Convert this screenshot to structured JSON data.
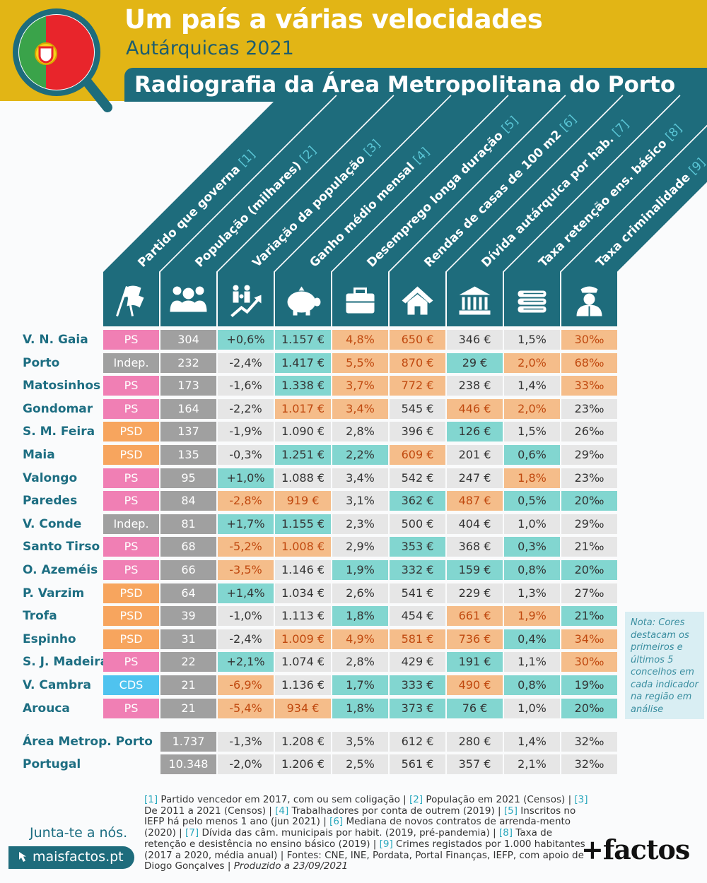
{
  "header": {
    "title": "Um país a várias velocidades",
    "subtitle": "Autárquicas 2021",
    "banner": "Radiografia da Área Metropolitana do Porto"
  },
  "colors": {
    "gold": "#e2b515",
    "teal_dark": "#1e6c7c",
    "PS": "#f07fb4",
    "PSD": "#f7a55e",
    "CDS": "#4fc3ef",
    "Indep": "#a0a0a0",
    "top5": "#82d6d0",
    "bottom5": "#f5bd8a",
    "neutral": "#e6e6e6"
  },
  "columns": [
    {
      "label": "Partido que governa",
      "ref": "[1]",
      "icon": "flags-icon"
    },
    {
      "label": "População (milhares)",
      "ref": "[2]",
      "icon": "people-icon"
    },
    {
      "label": "Variação da população",
      "ref": "[3]",
      "icon": "family-growth-icon"
    },
    {
      "label": "Ganho médio mensal",
      "ref": "[4]",
      "icon": "piggy-bank-icon"
    },
    {
      "label": "Desemprego longa duração",
      "ref": "[5]",
      "icon": "briefcase-icon"
    },
    {
      "label": "Rendas de casas de 100 m2",
      "ref": "[6]",
      "icon": "house-icon"
    },
    {
      "label": "Dívida autárquica por hab.",
      "ref": "[7]",
      "icon": "townhall-icon"
    },
    {
      "label": "Taxa retenção ens. básico",
      "ref": "[8]",
      "icon": "books-icon"
    },
    {
      "label": "Taxa criminalidade",
      "ref": "[9]",
      "icon": "police-icon"
    }
  ],
  "rows": [
    {
      "name": "V. N. Gaia",
      "cells": [
        [
          "PS",
          "PS"
        ],
        [
          "304",
          "g"
        ],
        [
          "+0,6%",
          "t"
        ],
        [
          "1.157 €",
          "t"
        ],
        [
          "4,8%",
          "o"
        ],
        [
          "650 €",
          "o"
        ],
        [
          "346 €",
          "n"
        ],
        [
          "1,5%",
          "n"
        ],
        [
          "30‰",
          "o"
        ]
      ]
    },
    {
      "name": "Porto",
      "cells": [
        [
          "Indep.",
          "I"
        ],
        [
          "232",
          "g"
        ],
        [
          "-2,4%",
          "n"
        ],
        [
          "1.417 €",
          "t"
        ],
        [
          "5,5%",
          "o"
        ],
        [
          "870 €",
          "o"
        ],
        [
          "29 €",
          "t"
        ],
        [
          "2,0%",
          "o"
        ],
        [
          "68‰",
          "o"
        ]
      ]
    },
    {
      "name": "Matosinhos",
      "cells": [
        [
          "PS",
          "PS"
        ],
        [
          "173",
          "g"
        ],
        [
          "-1,6%",
          "n"
        ],
        [
          "1.338 €",
          "t"
        ],
        [
          "3,7%",
          "o"
        ],
        [
          "772 €",
          "o"
        ],
        [
          "238 €",
          "n"
        ],
        [
          "1,4%",
          "n"
        ],
        [
          "33‰",
          "o"
        ]
      ]
    },
    {
      "name": "Gondomar",
      "cells": [
        [
          "PS",
          "PS"
        ],
        [
          "164",
          "g"
        ],
        [
          "-2,2%",
          "n"
        ],
        [
          "1.017 €",
          "o"
        ],
        [
          "3,4%",
          "o"
        ],
        [
          "545 €",
          "n"
        ],
        [
          "446 €",
          "o"
        ],
        [
          "2,0%",
          "o"
        ],
        [
          "23‰",
          "n"
        ]
      ]
    },
    {
      "name": "S. M. Feira",
      "cells": [
        [
          "PSD",
          "PSD"
        ],
        [
          "137",
          "g"
        ],
        [
          "-1,9%",
          "n"
        ],
        [
          "1.090 €",
          "n"
        ],
        [
          "2,8%",
          "n"
        ],
        [
          "396 €",
          "n"
        ],
        [
          "126 €",
          "t"
        ],
        [
          "1,5%",
          "n"
        ],
        [
          "26‰",
          "n"
        ]
      ]
    },
    {
      "name": "Maia",
      "cells": [
        [
          "PSD",
          "PSD"
        ],
        [
          "135",
          "g"
        ],
        [
          "-0,3%",
          "n"
        ],
        [
          "1.251 €",
          "t"
        ],
        [
          "2,2%",
          "t"
        ],
        [
          "609 €",
          "o"
        ],
        [
          "201 €",
          "n"
        ],
        [
          "0,6%",
          "t"
        ],
        [
          "29‰",
          "n"
        ]
      ]
    },
    {
      "name": "Valongo",
      "cells": [
        [
          "PS",
          "PS"
        ],
        [
          "95",
          "g"
        ],
        [
          "+1,0%",
          "t"
        ],
        [
          "1.088 €",
          "n"
        ],
        [
          "3,4%",
          "n"
        ],
        [
          "542 €",
          "n"
        ],
        [
          "247 €",
          "n"
        ],
        [
          "1,8%",
          "o"
        ],
        [
          "23‰",
          "n"
        ]
      ]
    },
    {
      "name": "Paredes",
      "cells": [
        [
          "PS",
          "PS"
        ],
        [
          "84",
          "g"
        ],
        [
          "-2,8%",
          "o"
        ],
        [
          "919 €",
          "o"
        ],
        [
          "3,1%",
          "n"
        ],
        [
          "362 €",
          "t"
        ],
        [
          "487 €",
          "o"
        ],
        [
          "0,5%",
          "t"
        ],
        [
          "20‰",
          "t"
        ]
      ]
    },
    {
      "name": "V. Conde",
      "cells": [
        [
          "Indep.",
          "I"
        ],
        [
          "81",
          "g"
        ],
        [
          "+1,7%",
          "t"
        ],
        [
          "1.155 €",
          "t"
        ],
        [
          "2,3%",
          "n"
        ],
        [
          "500 €",
          "n"
        ],
        [
          "404 €",
          "n"
        ],
        [
          "1,0%",
          "n"
        ],
        [
          "29‰",
          "n"
        ]
      ]
    },
    {
      "name": "Santo Tirso",
      "cells": [
        [
          "PS",
          "PS"
        ],
        [
          "68",
          "g"
        ],
        [
          "-5,2%",
          "o"
        ],
        [
          "1.008 €",
          "o"
        ],
        [
          "2,9%",
          "n"
        ],
        [
          "353 €",
          "t"
        ],
        [
          "368 €",
          "n"
        ],
        [
          "0,3%",
          "t"
        ],
        [
          "21‰",
          "n"
        ]
      ]
    },
    {
      "name": "O. Azeméis",
      "cells": [
        [
          "PS",
          "PS"
        ],
        [
          "66",
          "g"
        ],
        [
          "-3,5%",
          "o"
        ],
        [
          "1.146 €",
          "n"
        ],
        [
          "1,9%",
          "t"
        ],
        [
          "332 €",
          "t"
        ],
        [
          "159 €",
          "t"
        ],
        [
          "0,8%",
          "t"
        ],
        [
          "20‰",
          "t"
        ]
      ]
    },
    {
      "name": "P. Varzim",
      "cells": [
        [
          "PSD",
          "PSD"
        ],
        [
          "64",
          "g"
        ],
        [
          "+1,4%",
          "t"
        ],
        [
          "1.034 €",
          "n"
        ],
        [
          "2,6%",
          "n"
        ],
        [
          "541 €",
          "n"
        ],
        [
          "229 €",
          "n"
        ],
        [
          "1,3%",
          "n"
        ],
        [
          "27‰",
          "n"
        ]
      ]
    },
    {
      "name": "Trofa",
      "cells": [
        [
          "PSD",
          "PSD"
        ],
        [
          "39",
          "g"
        ],
        [
          "-1,0%",
          "n"
        ],
        [
          "1.113 €",
          "n"
        ],
        [
          "1,8%",
          "t"
        ],
        [
          "454 €",
          "n"
        ],
        [
          "661 €",
          "o"
        ],
        [
          "1,9%",
          "o"
        ],
        [
          "21‰",
          "t"
        ]
      ]
    },
    {
      "name": "Espinho",
      "cells": [
        [
          "PSD",
          "PSD"
        ],
        [
          "31",
          "g"
        ],
        [
          "-2,4%",
          "n"
        ],
        [
          "1.009 €",
          "o"
        ],
        [
          "4,9%",
          "o"
        ],
        [
          "581 €",
          "o"
        ],
        [
          "736 €",
          "o"
        ],
        [
          "0,4%",
          "t"
        ],
        [
          "34‰",
          "o"
        ]
      ]
    },
    {
      "name": "S. J. Madeira",
      "cells": [
        [
          "PS",
          "PS"
        ],
        [
          "22",
          "g"
        ],
        [
          "+2,1%",
          "t"
        ],
        [
          "1.074 €",
          "n"
        ],
        [
          "2,8%",
          "n"
        ],
        [
          "429 €",
          "n"
        ],
        [
          "191 €",
          "t"
        ],
        [
          "1,1%",
          "n"
        ],
        [
          "30‰",
          "o"
        ]
      ]
    },
    {
      "name": "V. Cambra",
      "cells": [
        [
          "CDS",
          "CDS"
        ],
        [
          "21",
          "g"
        ],
        [
          "-6,9%",
          "o"
        ],
        [
          "1.136 €",
          "n"
        ],
        [
          "1,7%",
          "t"
        ],
        [
          "333 €",
          "t"
        ],
        [
          "490 €",
          "o"
        ],
        [
          "0,8%",
          "t"
        ],
        [
          "19‰",
          "t"
        ]
      ]
    },
    {
      "name": "Arouca",
      "cells": [
        [
          "PS",
          "PS"
        ],
        [
          "21",
          "g"
        ],
        [
          "-5,4%",
          "o"
        ],
        [
          "934 €",
          "o"
        ],
        [
          "1,8%",
          "t"
        ],
        [
          "373 €",
          "t"
        ],
        [
          "76 €",
          "t"
        ],
        [
          "1,0%",
          "n"
        ],
        [
          "20‰",
          "t"
        ]
      ]
    }
  ],
  "totals": [
    {
      "name": "Área Metrop. Porto",
      "cells": [
        "1.737",
        "-1,3%",
        "1.208 €",
        "3,5%",
        "612 €",
        "280 €",
        "1,4%",
        "32‰"
      ]
    },
    {
      "name": "Portugal",
      "cells": [
        "10.348",
        "-2,0%",
        "1.206 €",
        "2,5%",
        "561 €",
        "357 €",
        "2,1%",
        "32‰"
      ]
    }
  ],
  "note": "Nota: Cores destacam os primeiros e últimos 5 concelhos em cada indicador na região em análise",
  "footnotes": [
    {
      "ref": "[1]",
      "text": " Partido vencedor em 2017, com ou sem coligação | "
    },
    {
      "ref": "[2]",
      "text": " População em 2021 (Censos) | "
    },
    {
      "ref": "[3]",
      "text": " De 2011 a 2021 (Censos) | "
    },
    {
      "ref": "[4]",
      "text": " Trabalhadores por conta de outrem (2019) | "
    },
    {
      "ref": "[5]",
      "text": " Inscritos no IEFP há pelo menos 1 ano (jun 2021) | "
    },
    {
      "ref": "[6]",
      "text": " Mediana de novos contratos de arrenda-mento (2020) | "
    },
    {
      "ref": "[7]",
      "text": " Dívida das câm. municipais por habit. (2019, pré-pandemia) | "
    },
    {
      "ref": "[8]",
      "text": " Taxa de retenção e desistência no ensino básico (2019) | "
    },
    {
      "ref": "[9]",
      "text": " Crimes registados por 1.000 habitantes (2017 a 2020, média anual) | Fontes: CNE, INE, Pordata, Portal Finanças, IEFP, com apoio de Diogo Gonçalves | "
    }
  ],
  "produced": "Produzido a 23/09/2021",
  "join": "Junta-te a nós.",
  "site": "maisfactos.pt",
  "brand": "+factos"
}
